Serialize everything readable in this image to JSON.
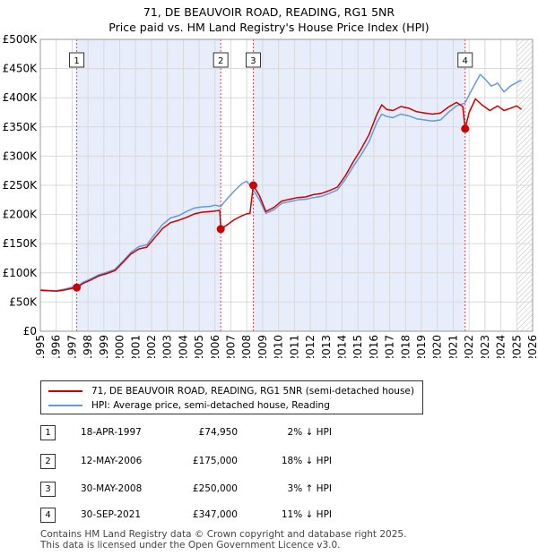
{
  "chart_data": {
    "type": "line",
    "title": "71, DE BEAUVOIR ROAD, READING, RG1 5NR",
    "subtitle": "Price paid vs. HM Land Registry's House Price Index (HPI)",
    "xlim": [
      1995,
      2026
    ],
    "ylim": [
      0,
      500000
    ],
    "x_ticks": [
      1995,
      1996,
      1997,
      1998,
      1999,
      2000,
      2001,
      2002,
      2003,
      2004,
      2005,
      2006,
      2007,
      2008,
      2009,
      2010,
      2011,
      2012,
      2013,
      2014,
      2015,
      2016,
      2017,
      2018,
      2019,
      2020,
      2021,
      2022,
      2023,
      2024,
      2025,
      2026
    ],
    "y_ticks": [
      {
        "value": 0,
        "label": "£0"
      },
      {
        "value": 50000,
        "label": "£50K"
      },
      {
        "value": 100000,
        "label": "£100K"
      },
      {
        "value": 150000,
        "label": "£150K"
      },
      {
        "value": 200000,
        "label": "£200K"
      },
      {
        "value": 250000,
        "label": "£250K"
      },
      {
        "value": 300000,
        "label": "£300K"
      },
      {
        "value": 350000,
        "label": "£350K"
      },
      {
        "value": 400000,
        "label": "£400K"
      },
      {
        "value": 450000,
        "label": "£450K"
      },
      {
        "value": 500000,
        "label": "£500K"
      }
    ],
    "grid": true,
    "forecast_from": 2025.0,
    "series": [
      {
        "name": "71, DE BEAUVOIR ROAD, READING, RG1 5NR (semi-detached house)",
        "color": "#cc0000",
        "points": [
          [
            1995.0,
            70000
          ],
          [
            1995.5,
            69500
          ],
          [
            1996.0,
            68500
          ],
          [
            1996.5,
            70500
          ],
          [
            1997.0,
            73500
          ],
          [
            1997.29,
            74950
          ],
          [
            1997.7,
            82000
          ],
          [
            1998.2,
            88000
          ],
          [
            1998.7,
            95000
          ],
          [
            1999.2,
            99000
          ],
          [
            1999.7,
            104000
          ],
          [
            2000.2,
            118000
          ],
          [
            2000.7,
            132000
          ],
          [
            2001.2,
            141000
          ],
          [
            2001.7,
            144000
          ],
          [
            2002.2,
            160000
          ],
          [
            2002.7,
            176000
          ],
          [
            2003.2,
            186000
          ],
          [
            2003.7,
            190000
          ],
          [
            2004.2,
            195000
          ],
          [
            2004.7,
            201000
          ],
          [
            2005.2,
            204000
          ],
          [
            2005.7,
            205000
          ],
          [
            2006.0,
            206000
          ],
          [
            2006.3,
            207000
          ],
          [
            2006.36,
            175000
          ],
          [
            2006.7,
            181000
          ],
          [
            2007.2,
            191000
          ],
          [
            2007.7,
            198000
          ],
          [
            2008.0,
            201000
          ],
          [
            2008.2,
            202000
          ],
          [
            2008.41,
            250000
          ],
          [
            2008.8,
            232000
          ],
          [
            2009.2,
            205000
          ],
          [
            2009.7,
            212000
          ],
          [
            2010.2,
            223000
          ],
          [
            2010.7,
            226000
          ],
          [
            2011.2,
            229000
          ],
          [
            2011.7,
            230000
          ],
          [
            2012.2,
            234000
          ],
          [
            2012.7,
            236000
          ],
          [
            2013.2,
            241000
          ],
          [
            2013.7,
            247000
          ],
          [
            2014.2,
            266000
          ],
          [
            2014.7,
            290000
          ],
          [
            2015.2,
            312000
          ],
          [
            2015.7,
            337000
          ],
          [
            2016.2,
            372000
          ],
          [
            2016.5,
            388000
          ],
          [
            2016.8,
            380000
          ],
          [
            2017.2,
            378000
          ],
          [
            2017.7,
            385000
          ],
          [
            2018.2,
            382000
          ],
          [
            2018.7,
            376000
          ],
          [
            2019.2,
            374000
          ],
          [
            2019.7,
            372000
          ],
          [
            2020.2,
            374000
          ],
          [
            2020.7,
            384000
          ],
          [
            2021.2,
            392000
          ],
          [
            2021.6,
            385000
          ],
          [
            2021.75,
            347000
          ],
          [
            2022.0,
            375000
          ],
          [
            2022.4,
            398000
          ],
          [
            2022.8,
            388000
          ],
          [
            2023.3,
            378000
          ],
          [
            2023.8,
            386000
          ],
          [
            2024.2,
            378000
          ],
          [
            2024.6,
            382000
          ],
          [
            2025.0,
            386000
          ],
          [
            2025.3,
            380000
          ]
        ]
      },
      {
        "name": "HPI: Average price, semi-detached house, Reading",
        "color": "#6699dd",
        "points": [
          [
            1995.0,
            71000
          ],
          [
            1995.5,
            70000
          ],
          [
            1996.0,
            69500
          ],
          [
            1996.5,
            72000
          ],
          [
            1997.0,
            75500
          ],
          [
            1997.29,
            76500
          ],
          [
            1997.7,
            84000
          ],
          [
            1998.2,
            90000
          ],
          [
            1998.7,
            97000
          ],
          [
            1999.2,
            101000
          ],
          [
            1999.7,
            106000
          ],
          [
            2000.2,
            120000
          ],
          [
            2000.7,
            135000
          ],
          [
            2001.2,
            145000
          ],
          [
            2001.7,
            148000
          ],
          [
            2002.2,
            166000
          ],
          [
            2002.7,
            183000
          ],
          [
            2003.2,
            194000
          ],
          [
            2003.7,
            198000
          ],
          [
            2004.2,
            205000
          ],
          [
            2004.7,
            211000
          ],
          [
            2005.2,
            213000
          ],
          [
            2005.7,
            214000
          ],
          [
            2006.0,
            216000
          ],
          [
            2006.36,
            214000
          ],
          [
            2006.7,
            225000
          ],
          [
            2007.2,
            240000
          ],
          [
            2007.7,
            253000
          ],
          [
            2008.0,
            257000
          ],
          [
            2008.41,
            242000
          ],
          [
            2008.8,
            225000
          ],
          [
            2009.2,
            202000
          ],
          [
            2009.7,
            208000
          ],
          [
            2010.2,
            219000
          ],
          [
            2010.7,
            222000
          ],
          [
            2011.2,
            225000
          ],
          [
            2011.7,
            226000
          ],
          [
            2012.2,
            229000
          ],
          [
            2012.7,
            231000
          ],
          [
            2013.2,
            236000
          ],
          [
            2013.7,
            242000
          ],
          [
            2014.2,
            260000
          ],
          [
            2014.7,
            282000
          ],
          [
            2015.2,
            302000
          ],
          [
            2015.7,
            325000
          ],
          [
            2016.2,
            358000
          ],
          [
            2016.5,
            372000
          ],
          [
            2016.8,
            368000
          ],
          [
            2017.2,
            366000
          ],
          [
            2017.7,
            372000
          ],
          [
            2018.2,
            369000
          ],
          [
            2018.7,
            364000
          ],
          [
            2019.2,
            362000
          ],
          [
            2019.7,
            360000
          ],
          [
            2020.2,
            362000
          ],
          [
            2020.7,
            375000
          ],
          [
            2021.2,
            386000
          ],
          [
            2021.75,
            391000
          ],
          [
            2022.0,
            405000
          ],
          [
            2022.4,
            425000
          ],
          [
            2022.7,
            440000
          ],
          [
            2023.0,
            432000
          ],
          [
            2023.4,
            420000
          ],
          [
            2023.8,
            425000
          ],
          [
            2024.2,
            410000
          ],
          [
            2024.6,
            420000
          ],
          [
            2025.0,
            426000
          ],
          [
            2025.3,
            430000
          ]
        ]
      }
    ],
    "sales": [
      {
        "num": "1",
        "x": 1997.29,
        "y": 74950
      },
      {
        "num": "2",
        "x": 2006.36,
        "y": 175000
      },
      {
        "num": "3",
        "x": 2008.41,
        "y": 250000
      },
      {
        "num": "4",
        "x": 2021.75,
        "y": 347000
      }
    ]
  },
  "legend": {
    "items": [
      {
        "label": "71, DE BEAUVOIR ROAD, READING, RG1 5NR (semi-detached house)",
        "color": "#cc0000"
      },
      {
        "label": "HPI: Average price, semi-detached house, Reading",
        "color": "#6699dd"
      }
    ]
  },
  "transactions": [
    {
      "num": "1",
      "date": "18-APR-1997",
      "price": "£74,950",
      "hpi": "2% ↓ HPI"
    },
    {
      "num": "2",
      "date": "12-MAY-2006",
      "price": "£175,000",
      "hpi": "18% ↓ HPI"
    },
    {
      "num": "3",
      "date": "30-MAY-2008",
      "price": "£250,000",
      "hpi": "3% ↑ HPI"
    },
    {
      "num": "4",
      "date": "30-SEP-2021",
      "price": "£347,000",
      "hpi": "11% ↓ HPI"
    }
  ],
  "footer": {
    "line1": "Contains HM Land Registry data © Crown copyright and database right 2025.",
    "line2": "This data is licensed under the Open Government Licence v3.0."
  }
}
